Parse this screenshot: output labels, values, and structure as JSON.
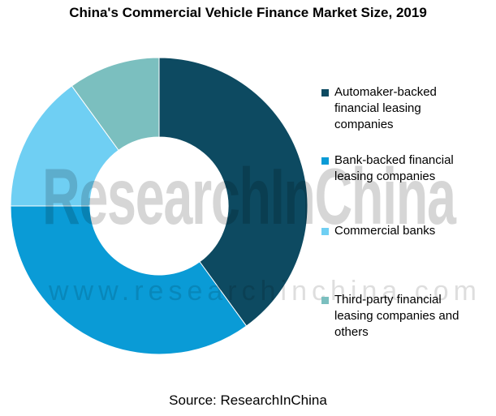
{
  "chart_data": {
    "type": "pie",
    "title": "China's Commercial Vehicle Finance Market Size, 2019",
    "categories": [
      "Automaker-backed financial leasing companies",
      "Bank-backed financial leasing companies",
      "Commercial banks",
      "Third-party financial leasing companies and others"
    ],
    "values": [
      40,
      35,
      15,
      10
    ],
    "colors": [
      "#0D4A61",
      "#0A9BD6",
      "#6FCFF3",
      "#7BBFBF"
    ],
    "legend_position": "right",
    "donut": true
  },
  "legend": {
    "items": [
      {
        "line1": "Automaker-backed",
        "line2": "financial leasing",
        "line3": "companies"
      },
      {
        "line1": "Bank-backed financial",
        "line2": "leasing companies"
      },
      {
        "line1": "Commercial banks"
      },
      {
        "line1": "Third-party financial",
        "line2": "leasing companies and",
        "line3": "others"
      }
    ]
  },
  "source": "Source: ResearchInChina",
  "watermark": {
    "logo": "ResearchInChina",
    "url": "www.researchinchina.com"
  }
}
